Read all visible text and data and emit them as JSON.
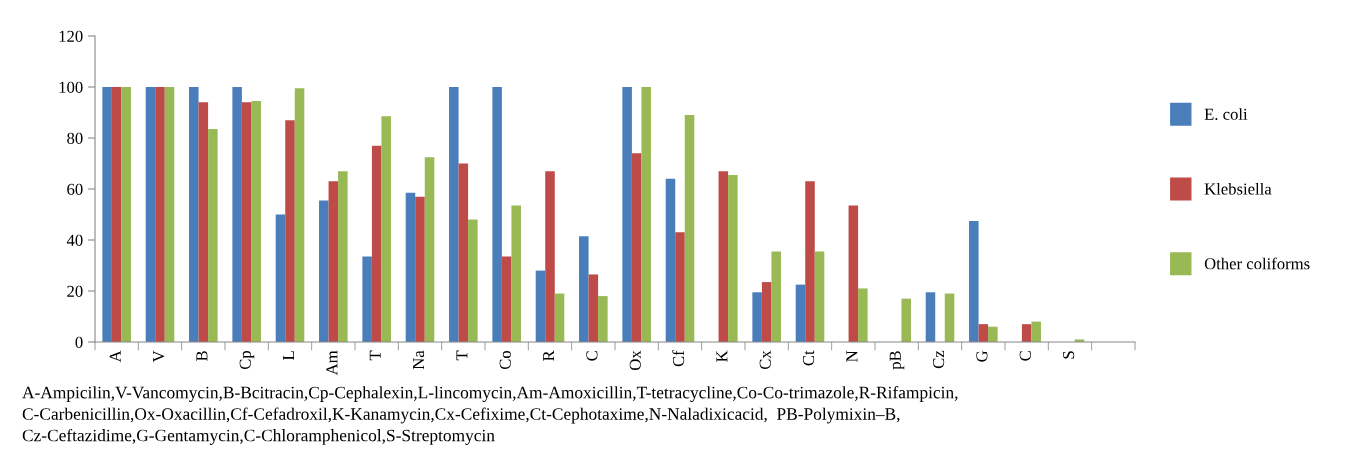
{
  "chart_data": {
    "type": "bar",
    "categories": [
      "A",
      "V",
      "B",
      "Cp",
      "L",
      "Am",
      "T",
      "Na",
      "T",
      "Co",
      "R",
      "C",
      "Ox",
      "Cf",
      "K",
      "Cx",
      "Ct",
      "N",
      "pB",
      "Cz",
      "G",
      "C",
      "S",
      null
    ],
    "series": [
      {
        "name": "E. coli",
        "color": "#4a7ebb",
        "values": [
          100,
          100,
          100,
          100,
          50,
          55.5,
          33.5,
          58.5,
          100,
          100,
          28,
          41.5,
          100,
          64,
          0,
          19.5,
          22.5,
          0,
          0,
          19.5,
          47.5,
          0,
          0,
          null
        ]
      },
      {
        "name": "Klebsiella",
        "color": "#be4b48",
        "values": [
          100,
          100,
          94,
          94,
          87,
          63,
          77,
          57,
          70,
          33.5,
          67,
          26.5,
          74,
          43,
          67,
          23.5,
          63,
          53.5,
          0,
          0,
          7,
          7,
          0,
          null
        ]
      },
      {
        "name": "Other coliforms",
        "color": "#98b954",
        "values": [
          100,
          100,
          83.5,
          94.5,
          99.5,
          67,
          88.5,
          72.5,
          48,
          53.5,
          19,
          18,
          100,
          89,
          65.5,
          35.5,
          35.5,
          21,
          17,
          19,
          6,
          8,
          1,
          null
        ]
      }
    ],
    "ylim": [
      0,
      120
    ],
    "yticks": [
      0,
      20,
      40,
      60,
      80,
      100,
      120
    ],
    "legend": "right",
    "annotations": [
      "A-Ampicilin,V-Vancomycin,B-Bcitracin,Cp-Cephalexin,L-lincomycin,Am-Amoxicillin,T-tetracycline,Co-Co-trimazole,R-Rifampicin,\nC-Carbenicillin,Ox-Oxacillin,Cf-Cefadroxil,K-Kanamycin,Cx-Cefixime,Ct-Cephotaxime,N-Naladixicacid,  PB-Polymixin–B,\nCz-Ceftazidime,G-Gentamycin,C-Chloramphenicol,S-Streptomycin"
    ]
  }
}
